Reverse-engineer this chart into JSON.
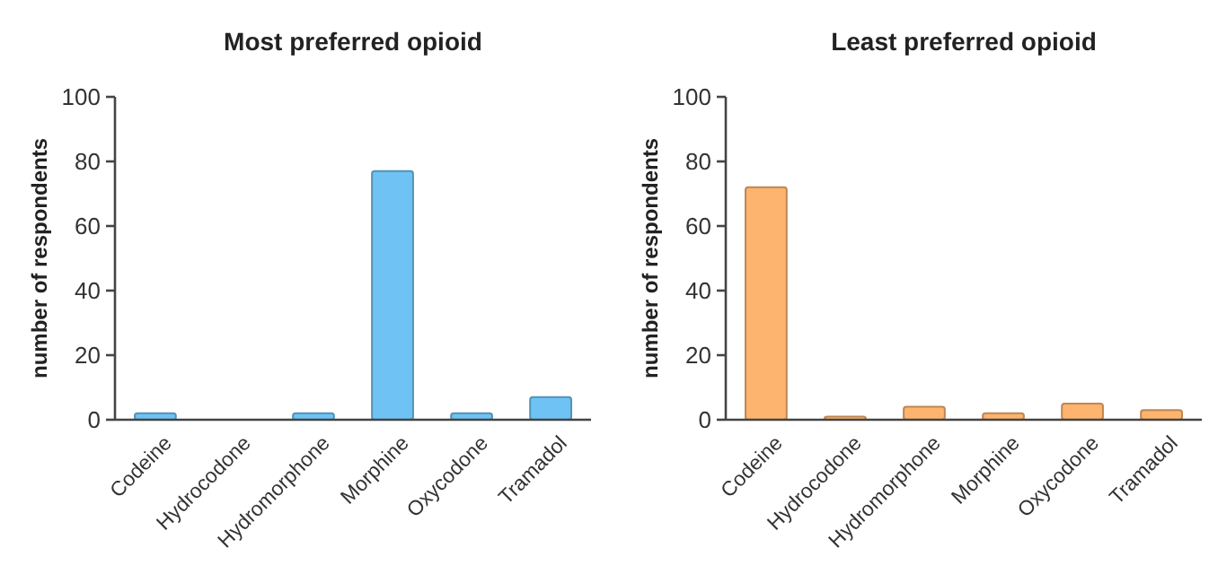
{
  "chart_data": [
    {
      "type": "bar",
      "title": "Most preferred opioid",
      "ylabel": "number of respondents",
      "categories": [
        "Codeine",
        "Hydrocodone",
        "Hydromorphone",
        "Morphine",
        "Oxycodone",
        "Tramadol"
      ],
      "values": [
        2,
        0,
        2,
        77,
        2,
        7
      ],
      "color": "#6ec3f4",
      "ylim": [
        0,
        100
      ],
      "yticks": [
        0,
        20,
        40,
        60,
        80,
        100
      ],
      "grid": false
    },
    {
      "type": "bar",
      "title": "Least preferred opioid",
      "ylabel": "number of respondents",
      "categories": [
        "Codeine",
        "Hydrocodone",
        "Hydromorphone",
        "Morphine",
        "Oxycodone",
        "Tramadol"
      ],
      "values": [
        72,
        1,
        4,
        2,
        5,
        3
      ],
      "color": "#fdb46e",
      "ylim": [
        0,
        100
      ],
      "yticks": [
        0,
        20,
        40,
        60,
        80,
        100
      ],
      "grid": false
    }
  ]
}
